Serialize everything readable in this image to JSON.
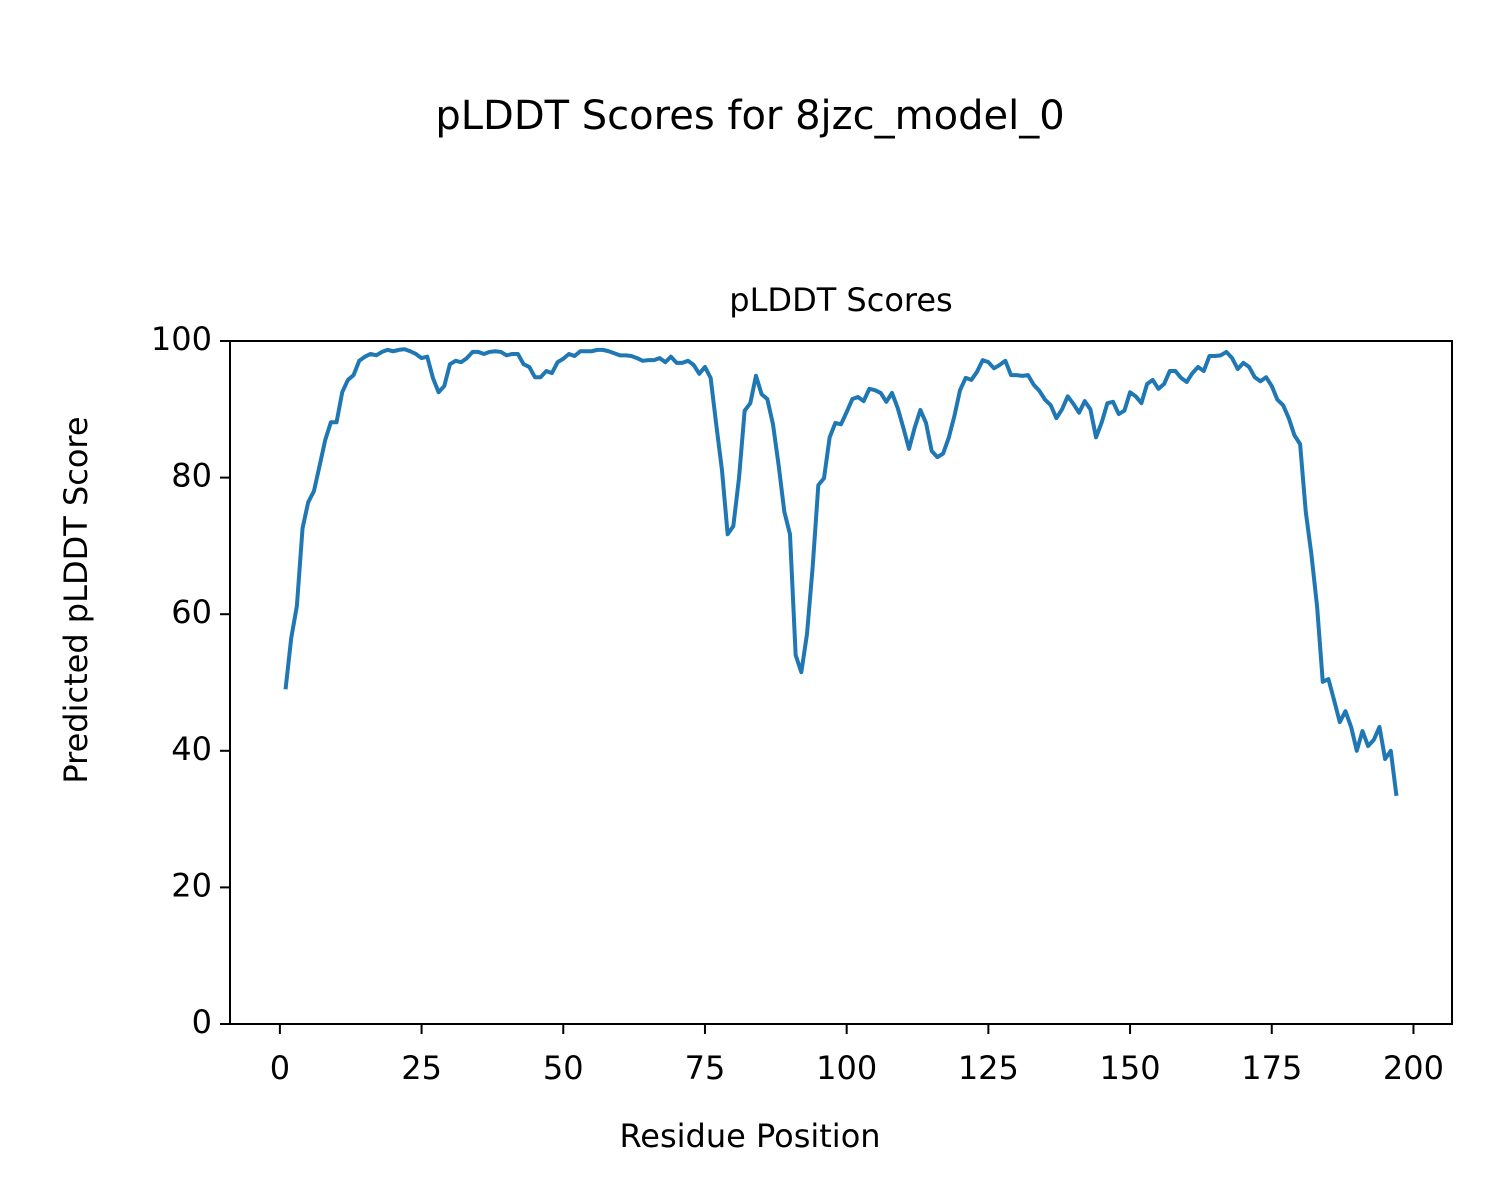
{
  "chart_data": {
    "type": "line",
    "suptitle": "pLDDT Scores for 8jzc_model_0",
    "title": "pLDDT Scores",
    "xlabel": "Residue Position",
    "ylabel": "Predicted pLDDT Score",
    "xlim": [
      -8.8,
      206.8
    ],
    "ylim": [
      0,
      100
    ],
    "xticks": [
      0,
      25,
      50,
      75,
      100,
      125,
      150,
      175,
      200
    ],
    "yticks": [
      0,
      20,
      40,
      60,
      80,
      100
    ],
    "grid": false,
    "x": [
      1,
      2,
      3,
      4,
      5,
      6,
      7,
      8,
      9,
      10,
      11,
      12,
      13,
      14,
      15,
      16,
      17,
      18,
      19,
      20,
      21,
      22,
      23,
      24,
      25,
      26,
      27,
      28,
      29,
      30,
      31,
      32,
      33,
      34,
      35,
      36,
      37,
      38,
      39,
      40,
      41,
      42,
      43,
      44,
      45,
      46,
      47,
      48,
      49,
      50,
      51,
      52,
      53,
      54,
      55,
      56,
      57,
      58,
      59,
      60,
      61,
      62,
      63,
      64,
      65,
      66,
      67,
      68,
      69,
      70,
      71,
      72,
      73,
      74,
      75,
      76,
      77,
      78,
      79,
      80,
      81,
      82,
      83,
      84,
      85,
      86,
      87,
      88,
      89,
      90,
      91,
      92,
      93,
      94,
      95,
      96,
      97,
      98,
      99,
      100,
      101,
      102,
      103,
      104,
      105,
      106,
      107,
      108,
      109,
      110,
      111,
      112,
      113,
      114,
      115,
      116,
      117,
      118,
      119,
      120,
      121,
      122,
      123,
      124,
      125,
      126,
      127,
      128,
      129,
      130,
      131,
      132,
      133,
      134,
      135,
      136,
      137,
      138,
      139,
      140,
      141,
      142,
      143,
      144,
      145,
      146,
      147,
      148,
      149,
      150,
      151,
      152,
      153,
      154,
      155,
      156,
      157,
      158,
      159,
      160,
      161,
      162,
      163,
      164,
      165,
      166,
      167,
      168,
      169,
      170,
      171,
      172,
      173,
      174,
      175,
      176,
      177,
      178,
      179,
      180,
      181,
      182,
      183,
      184,
      185,
      186,
      187,
      188,
      189,
      190,
      191,
      192,
      193,
      194,
      195,
      196,
      197
    ],
    "series": [
      {
        "color": "#1f77b4",
        "values": [
          49.0,
          56.5,
          61.2,
          72.6,
          76.4,
          78.0,
          81.7,
          85.5,
          88.1,
          88.1,
          92.5,
          94.3,
          95.0,
          97.1,
          97.7,
          98.1,
          97.9,
          98.4,
          98.7,
          98.5,
          98.7,
          98.8,
          98.5,
          98.1,
          97.5,
          97.7,
          94.6,
          92.5,
          93.4,
          96.6,
          97.1,
          96.9,
          97.5,
          98.4,
          98.4,
          98.1,
          98.4,
          98.5,
          98.4,
          97.9,
          98.1,
          98.1,
          96.6,
          96.2,
          94.7,
          94.7,
          95.6,
          95.3,
          96.9,
          97.4,
          98.1,
          97.8,
          98.5,
          98.5,
          98.5,
          98.7,
          98.7,
          98.5,
          98.2,
          97.9,
          97.9,
          97.8,
          97.5,
          97.1,
          97.2,
          97.2,
          97.5,
          96.9,
          97.7,
          96.8,
          96.8,
          97.1,
          96.5,
          95.2,
          96.2,
          94.6,
          87.7,
          81.1,
          71.7,
          72.9,
          79.9,
          89.8,
          90.9,
          94.9,
          92.2,
          91.5,
          87.8,
          81.8,
          75.0,
          71.7,
          54.0,
          51.5,
          57.1,
          66.9,
          78.9,
          79.9,
          85.9,
          88.0,
          87.8,
          89.6,
          91.5,
          91.8,
          91.2,
          93.0,
          92.8,
          92.4,
          91.1,
          92.4,
          90.2,
          87.3,
          84.2,
          87.3,
          89.9,
          88.0,
          83.9,
          83.0,
          83.5,
          85.8,
          89.0,
          92.8,
          94.6,
          94.3,
          95.5,
          97.2,
          96.9,
          96.0,
          96.5,
          97.1,
          95.0,
          95.0,
          94.9,
          95.0,
          93.6,
          92.7,
          91.4,
          90.6,
          88.7,
          90.0,
          91.9,
          90.8,
          89.5,
          91.2,
          90.0,
          85.9,
          88.1,
          90.9,
          91.1,
          89.3,
          89.8,
          92.5,
          91.9,
          90.9,
          93.7,
          94.3,
          93.0,
          93.7,
          95.6,
          95.6,
          94.6,
          94.0,
          95.3,
          96.2,
          95.6,
          97.8,
          97.8,
          97.9,
          98.4,
          97.5,
          95.9,
          96.8,
          96.2,
          94.7,
          94.1,
          94.7,
          93.4,
          91.4,
          90.6,
          88.7,
          86.2,
          84.9,
          75.0,
          68.7,
          61.1,
          50.1,
          50.5,
          47.4,
          44.2,
          45.8,
          43.5,
          40.0,
          42.9,
          40.7,
          41.6,
          43.5,
          38.8,
          40.0,
          33.4
        ]
      }
    ]
  }
}
